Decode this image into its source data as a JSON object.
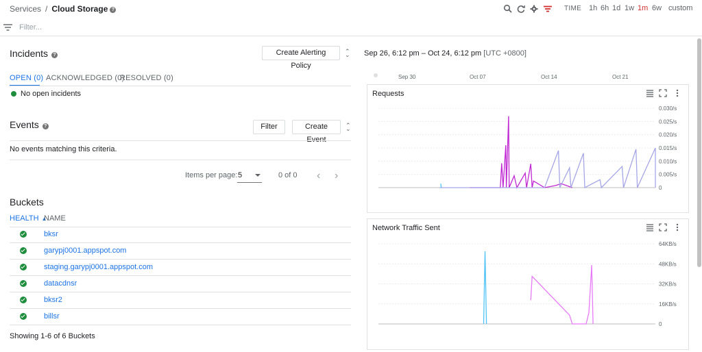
{
  "breadcrumb": {
    "parent": "Services",
    "separator": "/",
    "current": "Cloud Storage"
  },
  "toolbar": {
    "time_label": "TIME",
    "ranges": [
      "1h",
      "6h",
      "1d",
      "1w",
      "1m",
      "6w",
      "custom"
    ],
    "active_range": "1m"
  },
  "filter": {
    "placeholder": "Filter..."
  },
  "incidents": {
    "title": "Incidents",
    "create_policy_label": "Create Alerting Policy",
    "tabs": [
      "OPEN (0)",
      "ACKNOWLEDGED (0)",
      "RESOLVED (0)"
    ],
    "empty_text": "No open incidents"
  },
  "events": {
    "title": "Events",
    "filter_label": "Filter",
    "create_event_label": "Create Event",
    "empty_text": "No events matching this criteria.",
    "items_per_page_label": "Items per page:",
    "items_per_page_value": "5",
    "page_range": "0 of 0"
  },
  "buckets": {
    "title": "Buckets",
    "col_health": "HEALTH",
    "col_name": "NAME",
    "rows": [
      {
        "name": "bksr"
      },
      {
        "name": "garypj0001.appspot.com"
      },
      {
        "name": "staging.garypj0001.appspot.com"
      },
      {
        "name": "datacdnsr"
      },
      {
        "name": "bksr2"
      },
      {
        "name": "billsr"
      }
    ],
    "footer": "Showing 1-6 of 6 Buckets"
  },
  "time_range": {
    "text": "Sep 26, 6:12 pm – Oct 24, 6:12 pm",
    "tz": "[UTC +0800]"
  },
  "timeline": {
    "ticks": [
      "Sep 30",
      "Oct 07",
      "Oct 14",
      "Oct 21"
    ]
  },
  "colors": {
    "accent": "#1a73e8",
    "active_range": "#d32f2f",
    "health_ok": "#1e8e3e"
  },
  "chart_data": [
    {
      "type": "line",
      "title": "Requests",
      "yticks": [
        "0.030/s",
        "0.025/s",
        "0.020/s",
        "0.015/s",
        "0.010/s",
        "0.005/s",
        "0"
      ],
      "ylim": [
        0,
        0.03
      ],
      "series": [
        {
          "color": "#c026d3",
          "values": [
            [
              0.33,
              0
            ],
            [
              0.44,
              0
            ],
            [
              0.445,
              0.0092
            ],
            [
              0.45,
              0
            ],
            [
              0.46,
              0.016
            ],
            [
              0.462,
              0
            ],
            [
              0.47,
              0.027
            ],
            [
              0.472,
              0
            ],
            [
              0.49,
              0.0045
            ],
            [
              0.5,
              0
            ],
            [
              0.53,
              0.0055
            ],
            [
              0.535,
              0
            ],
            [
              0.55,
              0.009
            ],
            [
              0.555,
              0
            ],
            [
              0.56,
              0.0025
            ],
            [
              0.6,
              0
            ],
            [
              0.64,
              0.0008
            ],
            [
              0.66,
              0.0015
            ],
            [
              0.7,
              0
            ]
          ]
        },
        {
          "color": "#a5a6e8",
          "values": [
            [
              0.22,
              0
            ],
            [
              0.5,
              0
            ],
            [
              0.52,
              0
            ],
            [
              0.6,
              0
            ],
            [
              0.65,
              0.014
            ],
            [
              0.655,
              0
            ],
            [
              0.69,
              0.0075
            ],
            [
              0.695,
              0
            ],
            [
              0.74,
              0.013
            ],
            [
              0.745,
              0
            ],
            [
              0.8,
              0.003
            ],
            [
              0.805,
              0
            ],
            [
              0.88,
              0.008
            ],
            [
              0.885,
              0
            ],
            [
              0.93,
              0.0145
            ],
            [
              0.935,
              0
            ],
            [
              1.0,
              0.015
            ],
            [
              1.0,
              0
            ]
          ]
        },
        {
          "color": "#4fc3f7",
          "values": [
            [
              0.225,
              0.0015
            ],
            [
              0.227,
              0
            ]
          ]
        }
      ]
    },
    {
      "type": "line",
      "title": "Network Traffic Sent",
      "yticks": [
        "64KB/s",
        "48KB/s",
        "32KB/s",
        "16KB/s",
        "0"
      ],
      "ylim": [
        0,
        64
      ],
      "series": [
        {
          "color": "#4fc3f7",
          "values": [
            [
              0.38,
              0
            ],
            [
              0.385,
              58
            ],
            [
              0.39,
              0
            ]
          ]
        },
        {
          "color": "#e879f9",
          "values": [
            [
              0.55,
              19
            ],
            [
              0.555,
              38
            ],
            [
              0.69,
              7
            ],
            [
              0.7,
              0
            ],
            [
              0.75,
              0
            ],
            [
              0.76,
              9
            ],
            [
              0.77,
              47
            ],
            [
              0.775,
              0
            ]
          ]
        }
      ]
    }
  ]
}
